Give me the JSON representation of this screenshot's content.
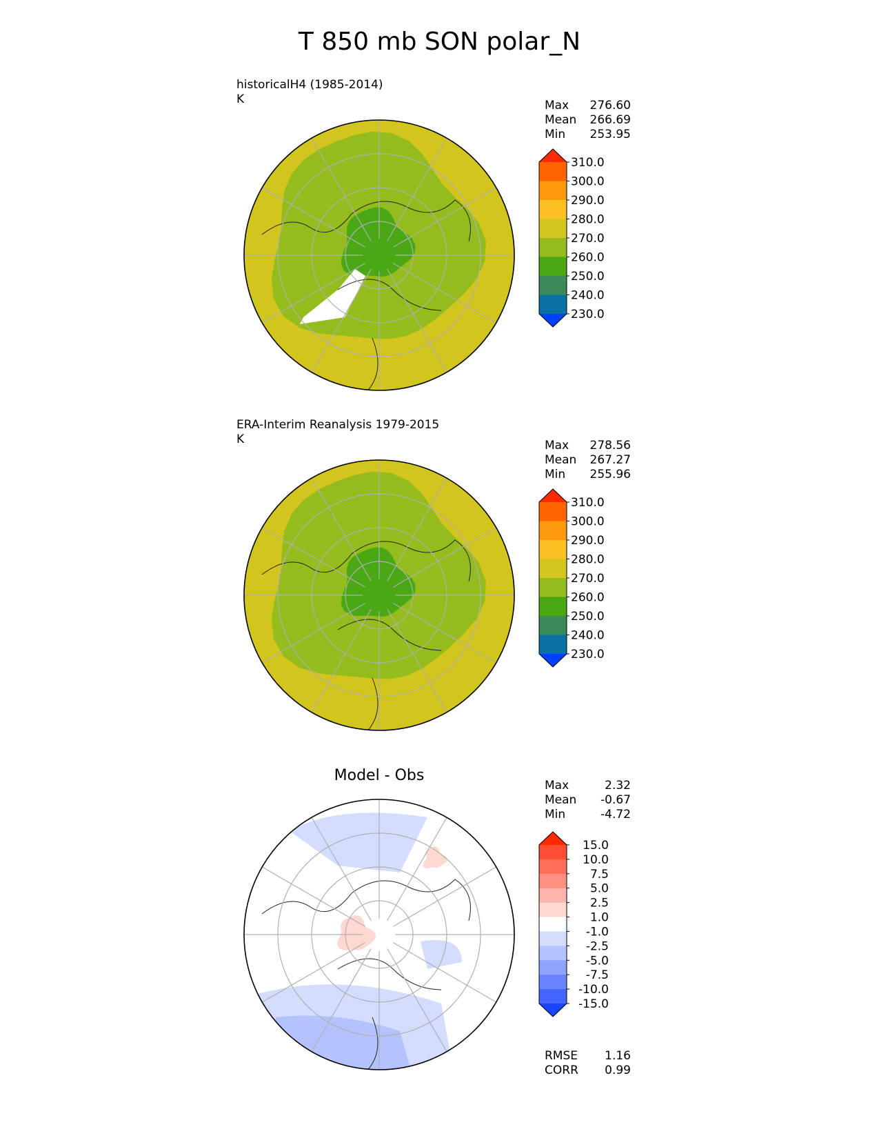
{
  "title": "T 850 mb SON polar_N",
  "chart_data": [
    {
      "type": "heatmap",
      "projection": "north polar stereographic",
      "title": "historicalH4 (1985-2014)",
      "units": "K",
      "stats": [
        {
          "label": "Max",
          "value": "276.60"
        },
        {
          "label": "Mean",
          "value": "266.69"
        },
        {
          "label": "Min",
          "value": "253.95"
        }
      ],
      "colorbar": {
        "ticks": [
          "310.0",
          "300.0",
          "290.0",
          "280.0",
          "270.0",
          "260.0",
          "250.0",
          "240.0",
          "230.0"
        ],
        "colors": [
          "#ff2a00",
          "#ff6600",
          "#ff9a0e",
          "#fbc021",
          "#d2c61e",
          "#93bc1c",
          "#49a813",
          "#3a8a5a",
          "#0a72a2",
          "#0040ff"
        ]
      },
      "regions": [
        {
          "level": "270-280",
          "color": "#d2c61e"
        },
        {
          "level": "260-270",
          "color": "#93bc1c"
        },
        {
          "level": "250-260",
          "color": "#49a813"
        }
      ]
    },
    {
      "type": "heatmap",
      "projection": "north polar stereographic",
      "title": "ERA-Interim Reanalysis 1979-2015",
      "units": "K",
      "stats": [
        {
          "label": "Max",
          "value": "278.56"
        },
        {
          "label": "Mean",
          "value": "267.27"
        },
        {
          "label": "Min",
          "value": "255.96"
        }
      ],
      "colorbar": {
        "ticks": [
          "310.0",
          "300.0",
          "290.0",
          "280.0",
          "270.0",
          "260.0",
          "250.0",
          "240.0",
          "230.0"
        ],
        "colors": [
          "#ff2a00",
          "#ff6600",
          "#ff9a0e",
          "#fbc021",
          "#d2c61e",
          "#93bc1c",
          "#49a813",
          "#3a8a5a",
          "#0a72a2",
          "#0040ff"
        ]
      },
      "regions": [
        {
          "level": "270-280",
          "color": "#d2c61e"
        },
        {
          "level": "260-270",
          "color": "#93bc1c"
        },
        {
          "level": "250-260",
          "color": "#49a813"
        }
      ]
    },
    {
      "type": "heatmap",
      "projection": "north polar stereographic",
      "title": "Model - Obs",
      "stats": [
        {
          "label": "Max",
          "value": "2.32"
        },
        {
          "label": "Mean",
          "value": "-0.67"
        },
        {
          "label": "Min",
          "value": "-4.72"
        }
      ],
      "metrics": [
        {
          "label": "RMSE",
          "value": "1.16"
        },
        {
          "label": "CORR",
          "value": "0.99"
        }
      ],
      "colorbar": {
        "ticks": [
          "15.0",
          "10.0",
          "7.5",
          "5.0",
          "2.5",
          "1.0",
          "-1.0",
          "-2.5",
          "-5.0",
          "-7.5",
          "-10.0",
          "-15.0"
        ],
        "colors": [
          "#ff2a00",
          "#ff4d33",
          "#ff6e59",
          "#ff8f80",
          "#ffb5ab",
          "#ffd8d2",
          "#ffffff",
          "#d4dcff",
          "#b4c2ff",
          "#8fa3ff",
          "#6a84ff",
          "#4466ff",
          "#1a44ff"
        ]
      },
      "regions": [
        {
          "level": "-2.5 to -1.0",
          "color": "#d4dcff"
        },
        {
          "level": "-5.0 to -2.5",
          "color": "#b4c2ff"
        },
        {
          "level": "1.0 to 2.5",
          "color": "#ffd8d2"
        }
      ]
    }
  ]
}
